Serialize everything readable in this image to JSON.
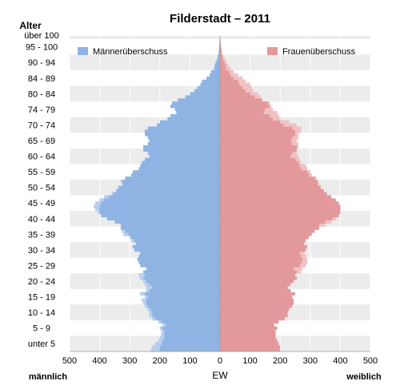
{
  "chart_data": {
    "type": "bar",
    "subtype": "population-pyramid",
    "title": "Filderstadt – 2011",
    "y_axis_title": "Alter",
    "x_axis_title": "EW",
    "left_side_label": "männlich",
    "right_side_label": "weiblich",
    "legend": {
      "placement": "top",
      "male_surplus": "Männerüberschuss",
      "female_surplus": "Frauenüberschuss"
    },
    "colors": {
      "male": "#8fb4e3",
      "female": "#e3999b",
      "male_surplus": "#b8cff0",
      "female_surplus": "#f0c3c5",
      "band": "#ececec"
    },
    "xlim": [
      -500,
      500
    ],
    "x_ticks": [
      -500,
      -400,
      -300,
      -200,
      -100,
      0,
      100,
      200,
      300,
      400,
      500
    ],
    "x_tick_labels": [
      "500",
      "400",
      "300",
      "200",
      "100",
      "0",
      "100",
      "200",
      "300",
      "400",
      "500"
    ],
    "ages": [
      0,
      1,
      2,
      3,
      4,
      5,
      6,
      7,
      8,
      9,
      10,
      11,
      12,
      13,
      14,
      15,
      16,
      17,
      18,
      19,
      20,
      21,
      22,
      23,
      24,
      25,
      26,
      27,
      28,
      29,
      30,
      31,
      32,
      33,
      34,
      35,
      36,
      37,
      38,
      39,
      40,
      41,
      42,
      43,
      44,
      45,
      46,
      47,
      48,
      49,
      50,
      51,
      52,
      53,
      54,
      55,
      56,
      57,
      58,
      59,
      60,
      61,
      62,
      63,
      64,
      65,
      66,
      67,
      68,
      69,
      70,
      71,
      72,
      73,
      74,
      75,
      76,
      77,
      78,
      79,
      80,
      81,
      82,
      83,
      84,
      85,
      86,
      87,
      88,
      89,
      90,
      91,
      92,
      93,
      94,
      95,
      96,
      97,
      98,
      99,
      100
    ],
    "age_group_labels": [
      {
        "age": 2,
        "label": "unter 5"
      },
      {
        "age": 7,
        "label": "5 - 9"
      },
      {
        "age": 12,
        "label": "10 - 14"
      },
      {
        "age": 17,
        "label": "15 - 19"
      },
      {
        "age": 22,
        "label": "20 - 24"
      },
      {
        "age": 27,
        "label": "25 - 29"
      },
      {
        "age": 32,
        "label": "30 - 34"
      },
      {
        "age": 37,
        "label": "35 - 39"
      },
      {
        "age": 42,
        "label": "40 - 44"
      },
      {
        "age": 47,
        "label": "45 - 49"
      },
      {
        "age": 52,
        "label": "50 - 54"
      },
      {
        "age": 57,
        "label": "55 - 59"
      },
      {
        "age": 62,
        "label": "60 - 64"
      },
      {
        "age": 67,
        "label": "65 - 69"
      },
      {
        "age": 72,
        "label": "70 - 74"
      },
      {
        "age": 77,
        "label": "74 - 79"
      },
      {
        "age": 82,
        "label": "80 - 84"
      },
      {
        "age": 87,
        "label": "84 - 89"
      },
      {
        "age": 92,
        "label": "90 - 94"
      },
      {
        "age": 97,
        "label": "95 - 100"
      },
      {
        "age": 100,
        "label": "über 100"
      }
    ],
    "series": [
      {
        "name": "männlich",
        "values": [
          230,
          225,
          215,
          205,
          200,
          195,
          195,
          200,
          190,
          205,
          225,
          235,
          235,
          240,
          250,
          255,
          260,
          250,
          265,
          245,
          245,
          250,
          255,
          265,
          270,
          255,
          245,
          265,
          270,
          275,
          270,
          265,
          285,
          290,
          280,
          295,
          300,
          320,
          325,
          330,
          330,
          350,
          375,
          395,
          405,
          415,
          420,
          415,
          400,
          385,
          360,
          345,
          340,
          325,
          330,
          315,
          295,
          290,
          270,
          265,
          260,
          250,
          235,
          240,
          255,
          255,
          240,
          235,
          240,
          250,
          250,
          240,
          210,
          200,
          175,
          165,
          145,
          150,
          165,
          160,
          140,
          115,
          100,
          85,
          75,
          65,
          60,
          45,
          35,
          30,
          20,
          18,
          15,
          10,
          8,
          5,
          4,
          3,
          2,
          1,
          1
        ]
      },
      {
        "name": "weiblich",
        "values": [
          200,
          200,
          195,
          190,
          185,
          185,
          185,
          190,
          180,
          195,
          215,
          225,
          225,
          230,
          240,
          245,
          245,
          240,
          250,
          235,
          225,
          235,
          245,
          255,
          250,
          270,
          275,
          285,
          290,
          290,
          285,
          280,
          285,
          290,
          280,
          285,
          295,
          305,
          315,
          330,
          350,
          370,
          385,
          395,
          400,
          400,
          400,
          395,
          385,
          370,
          355,
          345,
          335,
          330,
          325,
          320,
          305,
          300,
          290,
          285,
          270,
          265,
          260,
          255,
          255,
          260,
          260,
          255,
          260,
          260,
          270,
          270,
          255,
          230,
          200,
          195,
          190,
          175,
          170,
          165,
          140,
          135,
          125,
          110,
          105,
          100,
          85,
          75,
          60,
          45,
          35,
          28,
          22,
          18,
          12,
          8,
          6,
          4,
          3,
          2,
          1
        ]
      }
    ]
  }
}
